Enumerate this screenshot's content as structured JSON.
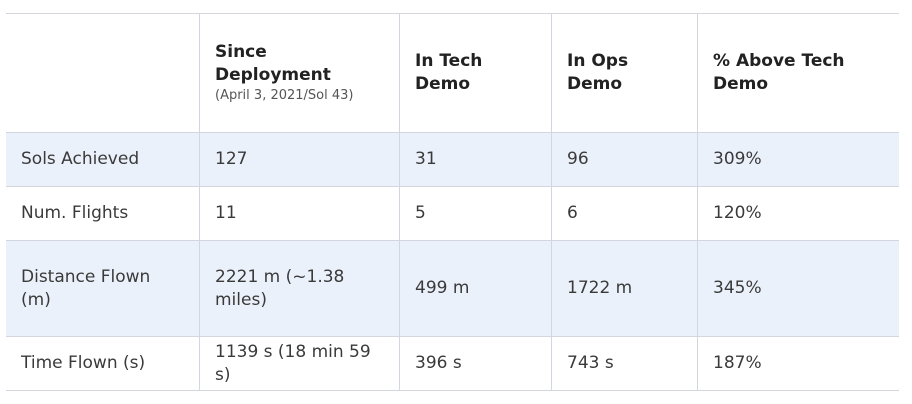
{
  "table": {
    "header": [
      "",
      "Since Deployment",
      "In Tech Demo",
      "In Ops Demo",
      "% Above Tech Demo"
    ],
    "header_note": "(April 3, 2021/Sol 43)",
    "rows": [
      [
        "Sols Achieved",
        "127",
        "31",
        "96",
        "309%"
      ],
      [
        "Num. Flights",
        "11",
        "5",
        "6",
        "120%"
      ],
      [
        "Distance Flown (m)",
        "2221 m (~1.38 miles)",
        "499 m",
        "1722 m",
        "345%"
      ],
      [
        "Time Flown (s)",
        "1139 s (18 min 59 s)",
        "396 s",
        "743 s",
        "187%"
      ]
    ]
  }
}
